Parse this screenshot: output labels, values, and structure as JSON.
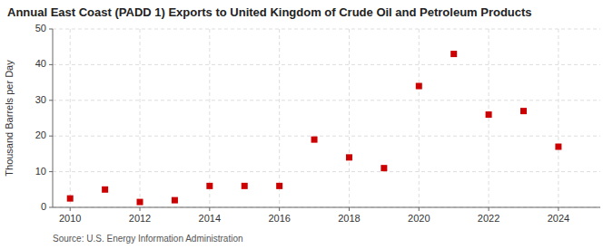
{
  "chart_data": {
    "type": "scatter",
    "title": "Annual East Coast (PADD 1) Exports to United Kingdom of Crude Oil and Petroleum Products",
    "ylabel": "Thousand Barrels per Day",
    "source": "Source: U.S. Energy Information Administration",
    "x": [
      2010,
      2011,
      2012,
      2013,
      2014,
      2015,
      2016,
      2017,
      2018,
      2019,
      2020,
      2021,
      2022,
      2023,
      2024
    ],
    "values": [
      2.5,
      5.0,
      1.5,
      2.0,
      6.0,
      6.0,
      6.0,
      19.0,
      14.0,
      11.0,
      34.0,
      43.0,
      26.0,
      27.0,
      17.0
    ],
    "color": "#cc0000",
    "marker": "square",
    "xlim": [
      2009.5,
      2025.2
    ],
    "ylim": [
      0,
      50
    ],
    "xticks": [
      2010,
      2012,
      2014,
      2016,
      2018,
      2020,
      2022,
      2024
    ],
    "yticks": [
      0,
      10,
      20,
      30,
      40,
      50
    ],
    "grid": true
  }
}
